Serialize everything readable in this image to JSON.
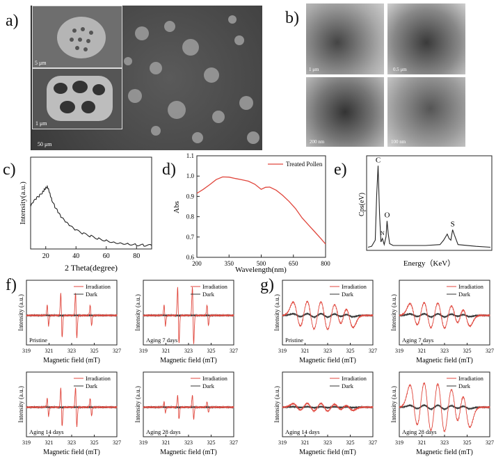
{
  "panels": {
    "a": "a)",
    "b": "b)",
    "c": "c)",
    "d": "d)",
    "e": "e)",
    "f": "f)",
    "g": "g)"
  },
  "sem": {
    "scale_top": "5 μm",
    "scale_mid": "1 μm",
    "scale_main": "50 μm"
  },
  "tem": {
    "scales": [
      "1 μm",
      "0.5 μm",
      "200 nm",
      "100 nm"
    ]
  },
  "chart_data": [
    {
      "id": "c",
      "type": "line",
      "xlabel": "2 Theta(degree)",
      "ylabel": "Intensity(a.u.)",
      "xlim": [
        10,
        90
      ],
      "xticks": [
        20,
        40,
        60,
        80
      ],
      "series": [
        {
          "x": [
            10,
            12,
            14,
            16,
            18,
            19,
            20,
            21,
            22,
            23,
            24,
            26,
            28,
            30,
            33,
            36,
            40,
            45,
            50,
            55,
            60,
            65,
            70,
            75,
            80,
            85,
            90
          ],
          "values": [
            0.5,
            0.56,
            0.6,
            0.63,
            0.67,
            0.7,
            0.72,
            0.74,
            0.7,
            0.64,
            0.58,
            0.5,
            0.44,
            0.38,
            0.32,
            0.27,
            0.22,
            0.18,
            0.15,
            0.12,
            0.1,
            0.08,
            0.07,
            0.06,
            0.05,
            0.045,
            0.04
          ]
        }
      ]
    },
    {
      "id": "d",
      "type": "line",
      "xlabel": "Wavelength(nm)",
      "ylabel": "Abs",
      "xlim": [
        200,
        800
      ],
      "ylim": [
        0.6,
        1.1
      ],
      "xticks": [
        200,
        350,
        500,
        650,
        800
      ],
      "yticks": [
        0.6,
        0.7,
        0.8,
        0.9,
        1.0,
        1.1
      ],
      "series": [
        {
          "name": "Treated Pollen",
          "color": "#e0463c",
          "x": [
            200,
            230,
            260,
            290,
            320,
            350,
            380,
            410,
            440,
            470,
            500,
            520,
            540,
            570,
            600,
            630,
            660,
            690,
            720,
            750,
            780,
            800
          ],
          "values": [
            0.915,
            0.935,
            0.958,
            0.983,
            0.996,
            0.995,
            0.988,
            0.982,
            0.975,
            0.96,
            0.935,
            0.945,
            0.946,
            0.93,
            0.905,
            0.875,
            0.84,
            0.795,
            0.76,
            0.725,
            0.69,
            0.665
          ]
        }
      ]
    },
    {
      "id": "e",
      "type": "line",
      "xlabel": "Energy（KeV）",
      "ylabel": "Cps(eV)",
      "peak_labels": [
        "C",
        "N",
        "O",
        "S"
      ],
      "series": [
        {
          "x": [
            0.0,
            0.1,
            0.2,
            0.24,
            0.28,
            0.32,
            0.36,
            0.4,
            0.45,
            0.5,
            0.53,
            0.56,
            0.6,
            0.7,
            0.9,
            1.2,
            1.6,
            2.0,
            2.1,
            2.2,
            2.25,
            2.3,
            2.35,
            2.4,
            2.5,
            3.0,
            3.4
          ],
          "values": [
            0.02,
            0.03,
            0.1,
            0.6,
            0.95,
            0.4,
            0.08,
            0.12,
            0.05,
            0.14,
            0.32,
            0.18,
            0.06,
            0.04,
            0.04,
            0.04,
            0.04,
            0.05,
            0.1,
            0.17,
            0.12,
            0.1,
            0.22,
            0.16,
            0.05,
            0.03,
            0.02
          ]
        }
      ]
    },
    {
      "id": "f",
      "type": "line",
      "xlabel": "Magnetic field (mT)",
      "ylabel": "Intensity (a.u.)",
      "xlim": [
        319,
        327
      ],
      "xticks": [
        319,
        321,
        323,
        325,
        327
      ],
      "legend": [
        "Irradiation",
        "Dark"
      ],
      "subplots": [
        {
          "label": "Pristine",
          "dmpo_amplitudes": [
            0.35,
            0.75,
            0.75,
            0.35
          ]
        },
        {
          "label": "Aging 7 days",
          "dmpo_amplitudes": [
            0.35,
            0.95,
            0.95,
            0.35
          ]
        },
        {
          "label": "Aging 14 days",
          "dmpo_amplitudes": [
            0.3,
            0.65,
            0.65,
            0.3
          ]
        },
        {
          "label": "Aging 28 days",
          "dmpo_amplitudes": [
            0.18,
            0.4,
            0.4,
            0.18
          ]
        }
      ]
    },
    {
      "id": "g",
      "type": "line",
      "xlabel": "Magnetic field (mT)",
      "ylabel": "Intensity (a.u.)",
      "xlim": [
        319,
        327
      ],
      "xticks": [
        319,
        321,
        323,
        325,
        327
      ],
      "legend": [
        "Irradiation",
        "Dark"
      ],
      "subplots": [
        {
          "label": "Pristine",
          "amplitudes": [
            0.45,
            0.55,
            0.55,
            0.45
          ]
        },
        {
          "label": "Aging 7 days",
          "amplitudes": [
            0.4,
            0.5,
            0.5,
            0.4
          ]
        },
        {
          "label": "Aging 14 days",
          "amplitudes": [
            0.12,
            0.15,
            0.15,
            0.12
          ]
        },
        {
          "label": "Aging 28 days",
          "amplitudes": [
            0.75,
            0.95,
            0.95,
            0.75
          ]
        }
      ]
    }
  ]
}
